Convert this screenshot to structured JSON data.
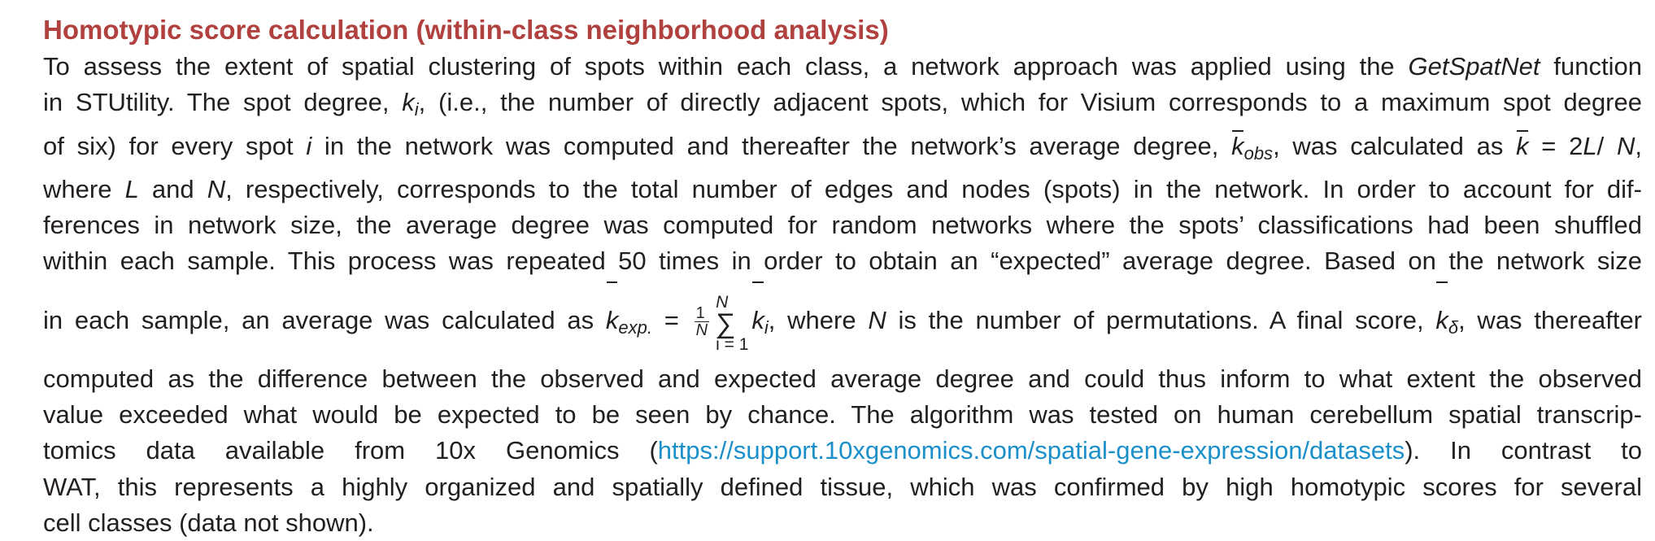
{
  "section": {
    "heading": "Homotypic score calculation (within-class neighborhood analysis)"
  },
  "paragraph": {
    "l1_a": "To assess the extent of spatial clustering of spots within each class, a network approach was applied using the ",
    "l1_fn": "GetSpatNet",
    "l1_b": " function",
    "l2_a": "in STUtility. The spot degree, ",
    "l2_k": "k",
    "l2_i": "i",
    "l2_b": ", (i.e., the number of directly adjacent spots, which for Visium corresponds to a maximum spot degree",
    "l3_a": "of six) for every spot ",
    "l3_i": "i",
    "l3_b": " in the network was computed and thereafter the network’s average degree, ",
    "l3_k": "k",
    "l3_obs": "obs",
    "l3_c": ", was calculated as ",
    "l3_k2": "k",
    "l3_eq": " = 2",
    "l3_L": "L",
    "l3_slash": "/ ",
    "l3_N": "N",
    "l3_end": ",",
    "l4_a": "where ",
    "l4_L": "L",
    "l4_b": " and ",
    "l4_N": "N",
    "l4_c": ", respectively, corresponds to the total number of edges and nodes (spots) in the network. In order to account for dif-",
    "l5": "ferences in network size, the average degree was computed for random networks where the spots’ classifications had been shuffled",
    "l6": "within each sample. This process was repeated 50 times in order to obtain an “expected” average degree. Based on the network size",
    "l7_a": "in each sample, an average was calculated as ",
    "l7_k": "k",
    "l7_exp": "exp.",
    "l7_eq": " = ",
    "l7_frac_num": "1",
    "l7_frac_den": "N",
    "l7_sum_top": "N",
    "l7_sum_sig": "∑",
    "l7_sum_bot": "i = 1",
    "l7_ki": "k",
    "l7_ki_sub": "i",
    "l7_b": ", where ",
    "l7_N": "N",
    "l7_c": " is the number of permutations. A final score, ",
    "l7_kd": "k",
    "l7_delta": "δ",
    "l7_d": ", was thereafter",
    "l8": "computed as the difference between the observed and expected average degree and could thus inform to what extent the observed",
    "l9": "value exceeded what would be expected to be seen by chance. The algorithm was tested on human cerebellum spatial transcrip-",
    "l10_a": "tomics data available from 10x Genomics (",
    "l10_link": "https://support.10xgenomics.com/spatial-gene-expression/datasets",
    "l10_b": "). In contrast to",
    "l11": "WAT, this represents a highly organized and spatially defined tissue, which was confirmed by high homotypic scores for several",
    "l12": "cell classes (data not shown)."
  },
  "colors": {
    "heading": "#b0413e",
    "text": "#231f20",
    "link": "#1b8fc9"
  }
}
